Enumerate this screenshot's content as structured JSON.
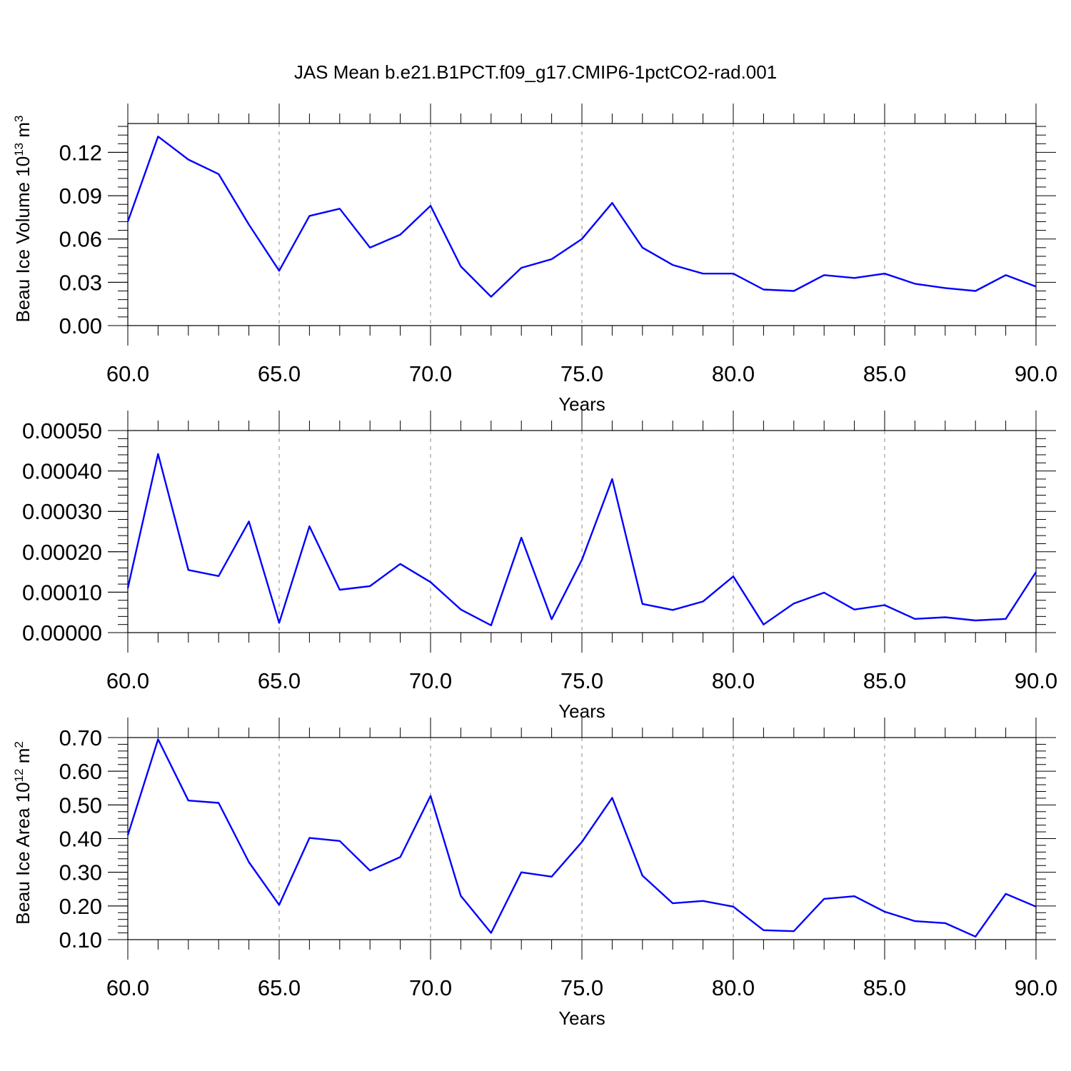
{
  "title": "JAS Mean b.e21.B1PCT.f09_g17.CMIP6-1pctCO2-rad.001",
  "colors": {
    "line": "#0000ff",
    "grid": "#888888",
    "axis": "#000000"
  },
  "chart_data": [
    {
      "type": "line",
      "xlabel": "Years",
      "ylabel": "Beau Ice Volume 10",
      "ylabel_sup": "13",
      "ylabel_unit": "m",
      "ylabel_unit_sup": "3",
      "xlim": [
        60,
        90
      ],
      "ylim": [
        0.0,
        0.14
      ],
      "xticks": [
        60,
        65,
        70,
        75,
        80,
        85,
        90
      ],
      "xtick_labels": [
        "60.0",
        "65.0",
        "70.0",
        "75.0",
        "80.0",
        "85.0",
        "90.0"
      ],
      "yticks": [
        0.0,
        0.03,
        0.06,
        0.09,
        0.12
      ],
      "ytick_labels": [
        "0.00",
        "0.03",
        "0.06",
        "0.09",
        "0.12"
      ],
      "grid": "vertical dashed at major x ticks",
      "x": [
        60,
        61,
        62,
        63,
        64,
        65,
        66,
        67,
        68,
        69,
        70,
        71,
        72,
        73,
        74,
        75,
        76,
        77,
        78,
        79,
        80,
        81,
        82,
        83,
        84,
        85,
        86,
        87,
        88,
        89,
        90
      ],
      "y": [
        0.072,
        0.131,
        0.115,
        0.105,
        0.07,
        0.038,
        0.076,
        0.081,
        0.054,
        0.063,
        0.083,
        0.041,
        0.02,
        0.04,
        0.046,
        0.06,
        0.085,
        0.054,
        0.042,
        0.036,
        0.036,
        0.025,
        0.024,
        0.035,
        0.033,
        0.036,
        0.029,
        0.026,
        0.024,
        0.035,
        0.027
      ]
    },
    {
      "type": "line",
      "xlabel": "Years",
      "ylabel": "",
      "xlim": [
        60,
        90
      ],
      "ylim": [
        0.0,
        0.0005
      ],
      "xticks": [
        60,
        65,
        70,
        75,
        80,
        85,
        90
      ],
      "xtick_labels": [
        "60.0",
        "65.0",
        "70.0",
        "75.0",
        "80.0",
        "85.0",
        "90.0"
      ],
      "yticks": [
        0.0,
        0.0001,
        0.0002,
        0.0003,
        0.0004,
        0.0005
      ],
      "ytick_labels": [
        "0.00000",
        "0.00010",
        "0.00020",
        "0.00030",
        "0.00040",
        "0.00050"
      ],
      "grid": "vertical dashed at major x ticks",
      "x": [
        60,
        61,
        62,
        63,
        64,
        65,
        66,
        67,
        68,
        69,
        70,
        71,
        72,
        73,
        74,
        75,
        76,
        77,
        78,
        79,
        80,
        81,
        82,
        83,
        84,
        85,
        86,
        87,
        88,
        89,
        90
      ],
      "y": [
        0.00011,
        0.000442,
        0.000155,
        0.00014,
        0.000275,
        2.4e-05,
        0.000263,
        0.000106,
        0.000115,
        0.00017,
        0.000125,
        5.7e-05,
        1.8e-05,
        0.000235,
        3.3e-05,
        0.00018,
        0.00038,
        7.1e-05,
        5.6e-05,
        7.7e-05,
        0.000139,
        2e-05,
        7.2e-05,
        9.9e-05,
        5.7e-05,
        6.8e-05,
        3.4e-05,
        3.8e-05,
        3e-05,
        3.4e-05,
        0.00015
      ]
    },
    {
      "type": "line",
      "xlabel": "Years",
      "ylabel": "Beau Ice Area 10",
      "ylabel_sup": "12",
      "ylabel_unit": "m",
      "ylabel_unit_sup": "2",
      "xlim": [
        60,
        90
      ],
      "ylim": [
        0.1,
        0.7
      ],
      "xticks": [
        60,
        65,
        70,
        75,
        80,
        85,
        90
      ],
      "xtick_labels": [
        "60.0",
        "65.0",
        "70.0",
        "75.0",
        "80.0",
        "85.0",
        "90.0"
      ],
      "yticks": [
        0.1,
        0.2,
        0.3,
        0.4,
        0.5,
        0.6,
        0.7
      ],
      "ytick_labels": [
        "0.10",
        "0.20",
        "0.30",
        "0.40",
        "0.50",
        "0.60",
        "0.70"
      ],
      "grid": "vertical dashed at major x ticks",
      "x": [
        60,
        61,
        62,
        63,
        64,
        65,
        66,
        67,
        68,
        69,
        70,
        71,
        72,
        73,
        74,
        75,
        76,
        77,
        78,
        79,
        80,
        81,
        82,
        83,
        84,
        85,
        86,
        87,
        88,
        89,
        90
      ],
      "y": [
        0.41,
        0.695,
        0.513,
        0.506,
        0.33,
        0.203,
        0.402,
        0.393,
        0.305,
        0.345,
        0.527,
        0.23,
        0.12,
        0.3,
        0.287,
        0.39,
        0.521,
        0.29,
        0.208,
        0.215,
        0.198,
        0.128,
        0.125,
        0.221,
        0.229,
        0.183,
        0.155,
        0.149,
        0.109,
        0.236,
        0.198
      ]
    }
  ]
}
